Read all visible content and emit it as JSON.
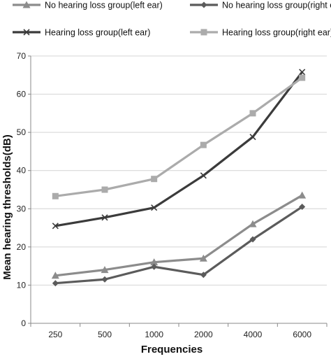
{
  "chart_data": {
    "type": "line",
    "xlabel": "Frequencies",
    "ylabel": "Mean hearing thresholds(dB)",
    "categories": [
      "250",
      "500",
      "1000",
      "2000",
      "4000",
      "6000"
    ],
    "ylim": [
      0,
      70
    ],
    "yticks": [
      0,
      10,
      20,
      30,
      40,
      50,
      60,
      70
    ],
    "grid": "horizontal",
    "legend_position": "top",
    "series": [
      {
        "name": "No hearing loss group(left ear)",
        "marker": "triangle",
        "color": "#8c8c8c",
        "values": [
          12.5,
          14.0,
          16.0,
          17.0,
          26.0,
          33.5
        ]
      },
      {
        "name": "No hearing loss group(right ear)",
        "marker": "diamond",
        "color": "#5b5b5b",
        "values": [
          10.5,
          11.5,
          14.8,
          12.7,
          22.0,
          30.5
        ]
      },
      {
        "name": "Hearing loss group(left ear)",
        "marker": "x",
        "color": "#3b3b3b",
        "values": [
          25.5,
          27.7,
          30.3,
          38.7,
          48.8,
          65.8
        ]
      },
      {
        "name": "Hearing loss group(right ear)",
        "marker": "square",
        "color": "#ababab",
        "values": [
          33.3,
          35.0,
          37.8,
          46.7,
          55.0,
          64.3
        ]
      }
    ]
  }
}
